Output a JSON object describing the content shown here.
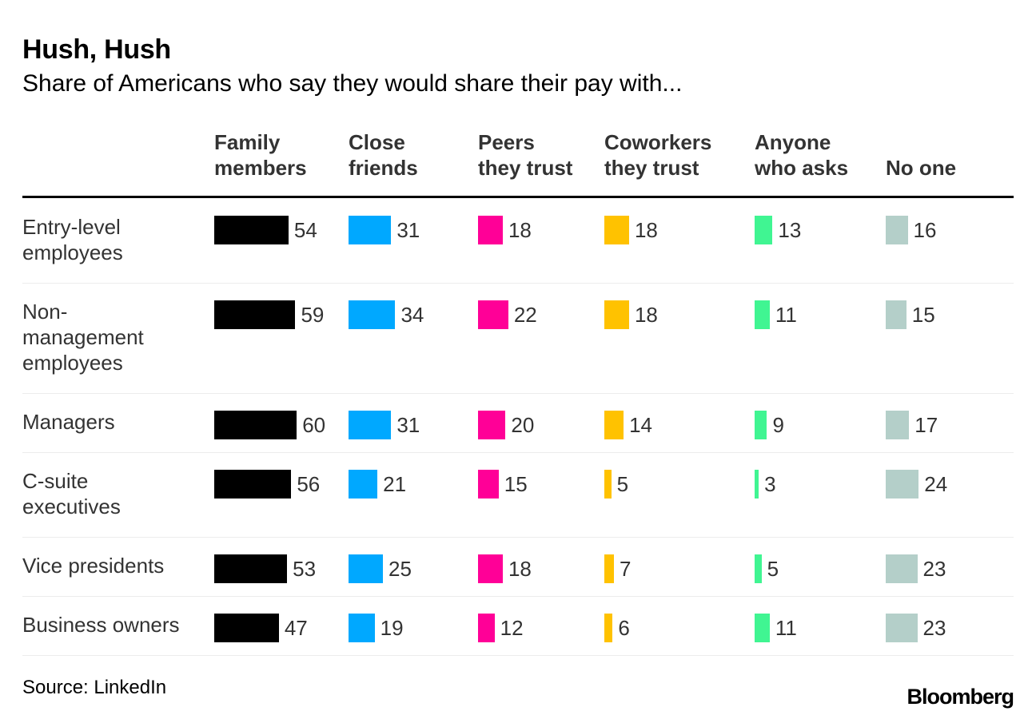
{
  "chart_data": {
    "type": "bar",
    "title": "Hush, Hush",
    "subtitle": "Share of Americans who say they would share their pay with...",
    "categories": [
      "Entry-level\nemployees",
      "Non-\nmanagement\nemployees",
      "Managers",
      "C-suite\nexecutives",
      "Vice presidents",
      "Business owners"
    ],
    "series": [
      {
        "name": "Family\nmembers",
        "color": "#000000",
        "values": [
          54,
          59,
          60,
          56,
          53,
          47
        ]
      },
      {
        "name": "Close\nfriends",
        "color": "#00a8ff",
        "values": [
          31,
          34,
          31,
          21,
          25,
          19
        ]
      },
      {
        "name": "Peers\nthey trust",
        "color": "#ff0097",
        "values": [
          18,
          22,
          20,
          15,
          18,
          12
        ]
      },
      {
        "name": "Coworkers\nthey trust",
        "color": "#ffc200",
        "values": [
          18,
          18,
          14,
          5,
          7,
          6
        ]
      },
      {
        "name": "Anyone\nwho asks",
        "color": "#40f592",
        "values": [
          13,
          11,
          9,
          3,
          5,
          11
        ]
      },
      {
        "name": "No one",
        "color": "#b4cfc9",
        "values": [
          16,
          15,
          17,
          24,
          23,
          23
        ]
      }
    ],
    "source": "Source: LinkedIn"
  },
  "footer": {
    "source": "Source: LinkedIn",
    "brand": "Bloomberg"
  }
}
